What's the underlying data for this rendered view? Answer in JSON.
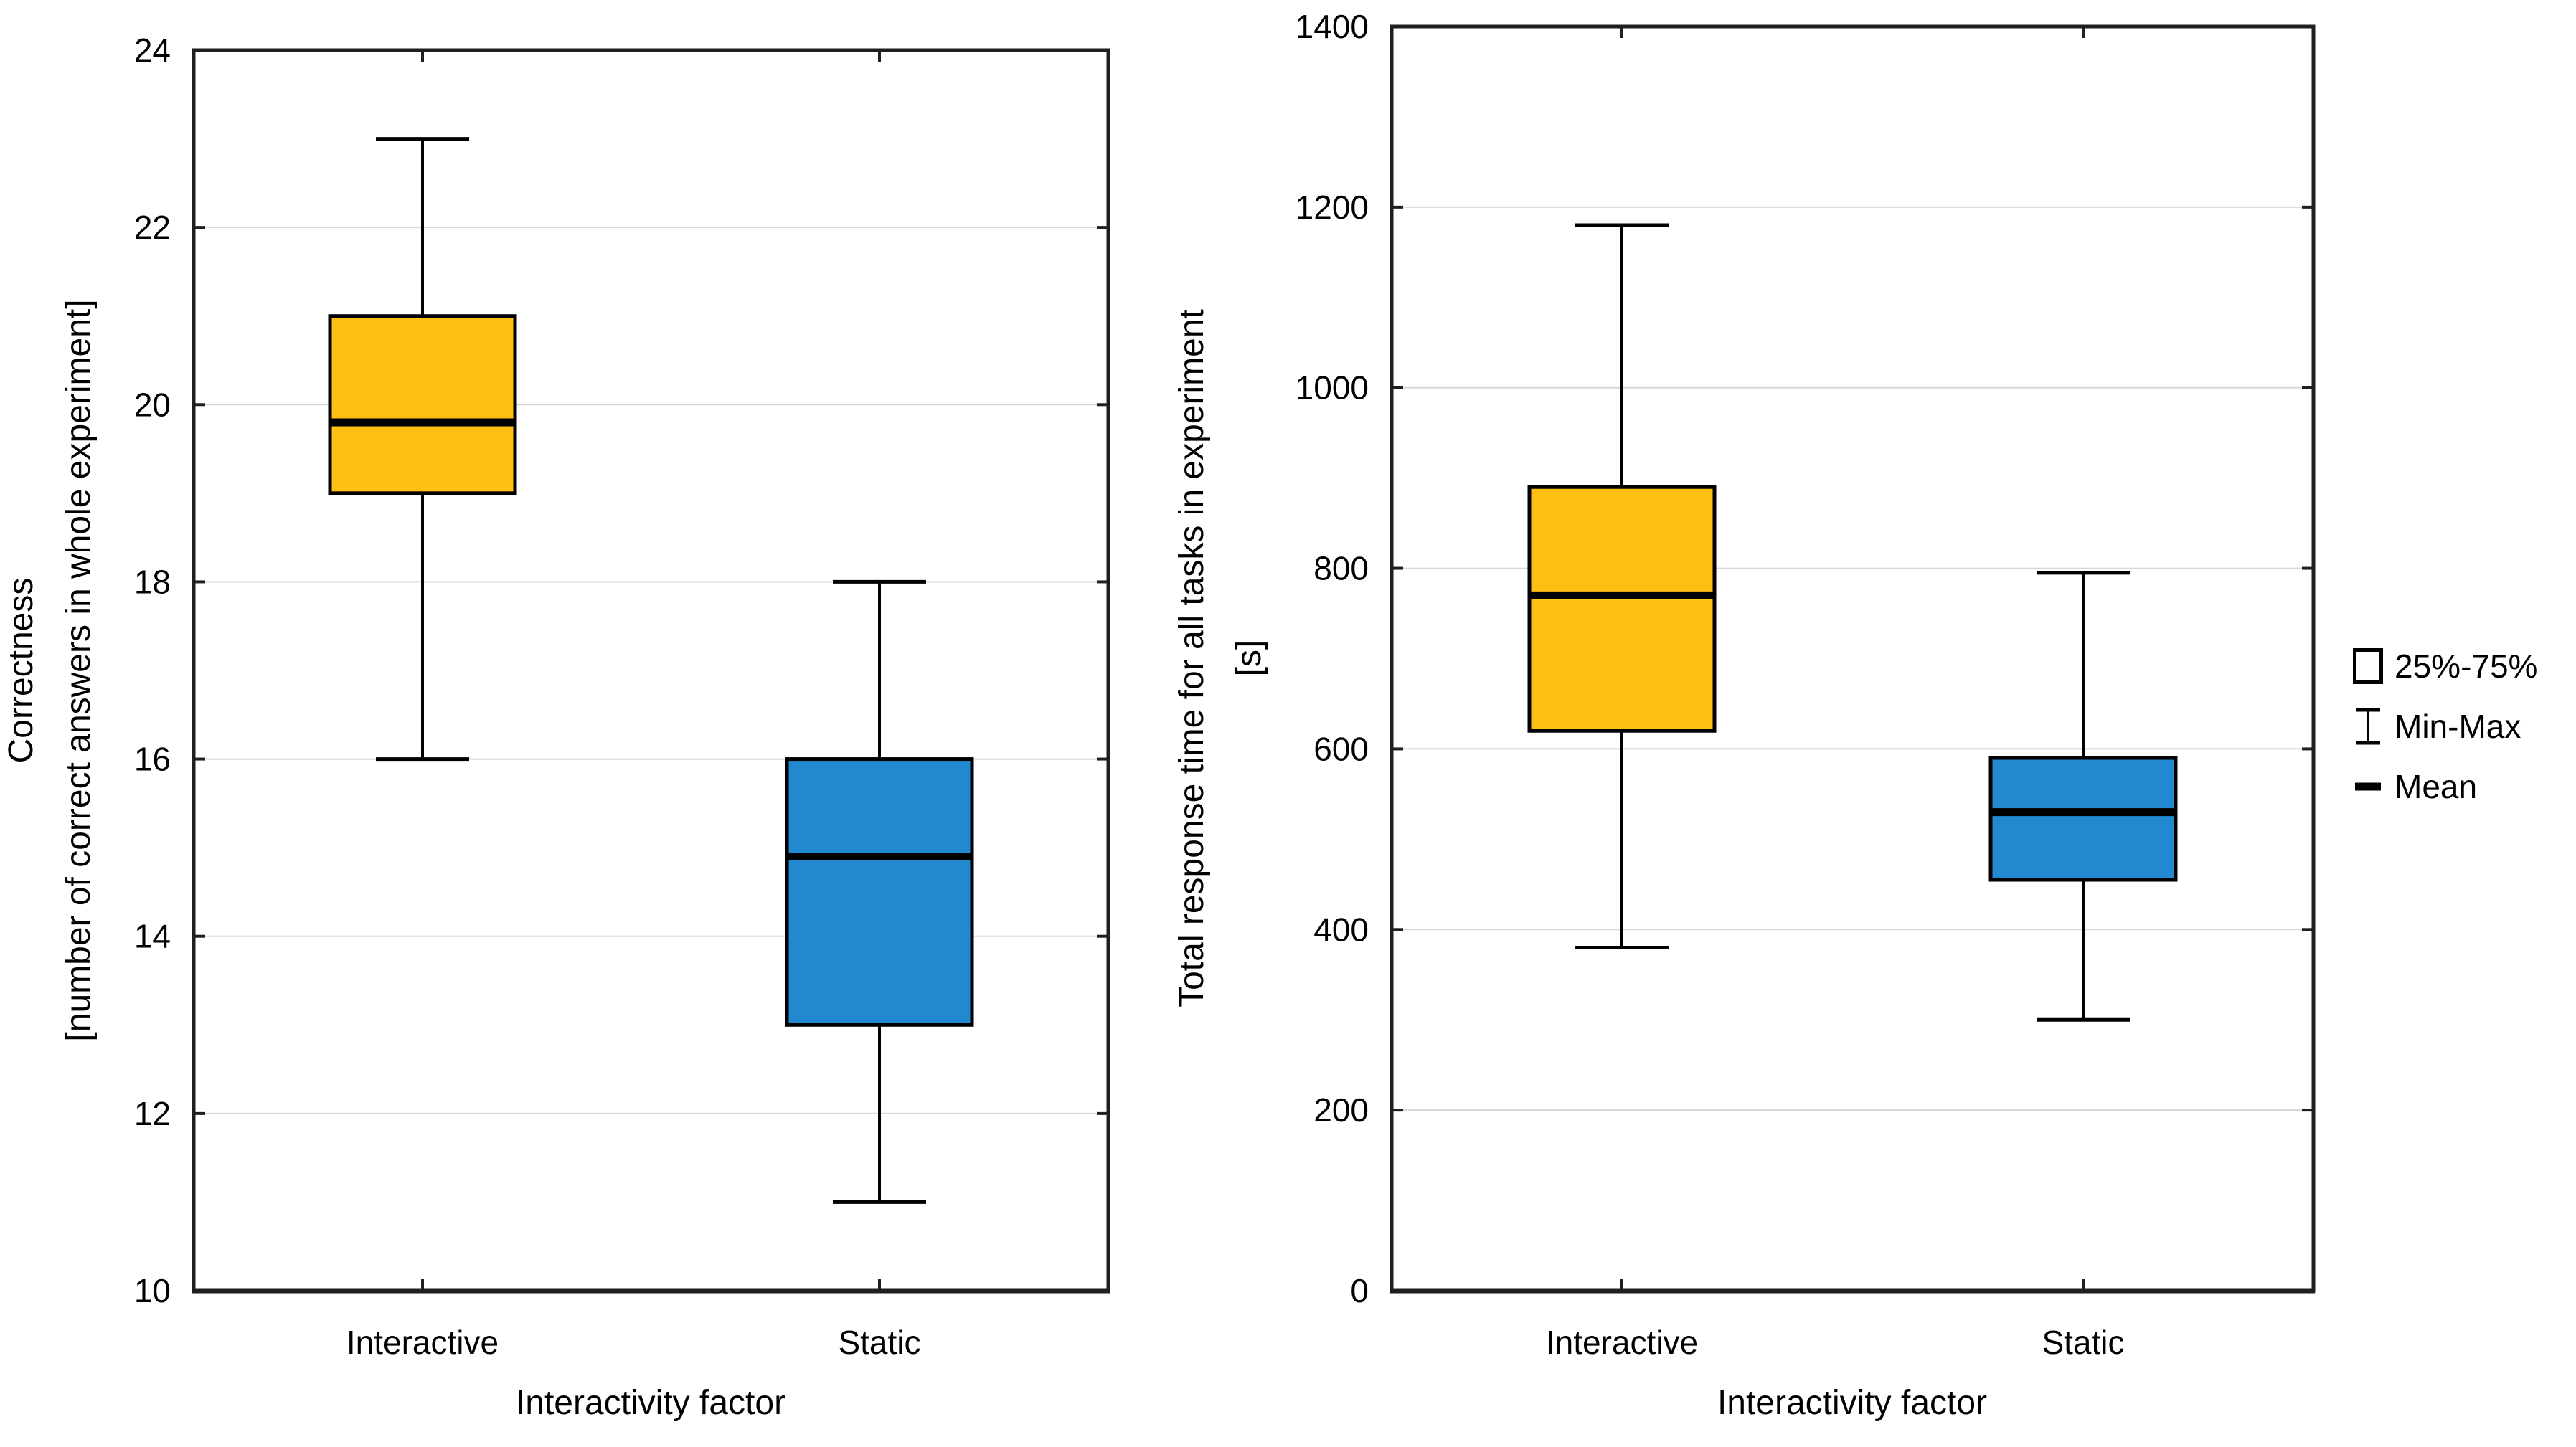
{
  "figure": {
    "type": "boxplot-pair",
    "background": "#FFFFFF",
    "colors": {
      "interactive_fill": "#FDBF11",
      "static_fill": "#2289D0",
      "stroke": "#000000",
      "gridline": "#D8D8D8",
      "axis": "#1F1F1F",
      "text": "#000000"
    }
  },
  "legend": {
    "position": "right",
    "items": [
      {
        "icon": "box-range-icon",
        "label": "25%-75%"
      },
      {
        "icon": "min-max-icon",
        "label": "Min-Max"
      },
      {
        "icon": "mean-icon",
        "label": "Mean"
      }
    ]
  },
  "chart_data": [
    {
      "type": "boxplot",
      "title": "",
      "xlabel": "Interactivity factor",
      "ylabel_lines": [
        "Correctness",
        "[number of correct answers in whole experiment]"
      ],
      "ylim": [
        10,
        24
      ],
      "yticks": [
        10,
        12,
        14,
        16,
        18,
        20,
        22,
        24
      ],
      "grid": true,
      "categories": [
        "Interactive",
        "Static"
      ],
      "series": [
        {
          "name": "Interactive",
          "min": 16,
          "q1": 19,
          "mean": 19.8,
          "q3": 21,
          "max": 23,
          "fill_color": "#FDBF11"
        },
        {
          "name": "Static",
          "min": 11,
          "q1": 13,
          "mean": 14.9,
          "q3": 16,
          "max": 18,
          "fill_color": "#2289D0"
        }
      ]
    },
    {
      "type": "boxplot",
      "title": "",
      "xlabel": "Interactivity factor",
      "ylabel_lines": [
        "Total response time for all tasks in experiment",
        "[s]"
      ],
      "ylim": [
        0,
        1400
      ],
      "yticks": [
        0,
        200,
        400,
        600,
        800,
        1000,
        1200,
        1400
      ],
      "grid": true,
      "categories": [
        "Interactive",
        "Static"
      ],
      "series": [
        {
          "name": "Interactive",
          "min": 380,
          "q1": 620,
          "mean": 770,
          "q3": 890,
          "max": 1180,
          "fill_color": "#FDBF11"
        },
        {
          "name": "Static",
          "min": 300,
          "q1": 455,
          "mean": 530,
          "q3": 590,
          "max": 795,
          "fill_color": "#2289D0"
        }
      ]
    }
  ]
}
